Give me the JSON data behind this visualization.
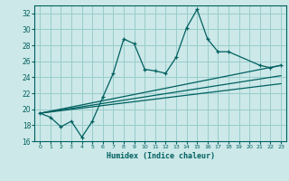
{
  "xlabel": "Humidex (Indice chaleur)",
  "background_color": "#cce8e8",
  "grid_color": "#99cccc",
  "line_color": "#006060",
  "xlim": [
    -0.5,
    23.5
  ],
  "ylim": [
    16,
    33
  ],
  "yticks": [
    16,
    18,
    20,
    22,
    24,
    26,
    28,
    30,
    32
  ],
  "xticks": [
    0,
    1,
    2,
    3,
    4,
    5,
    6,
    7,
    8,
    9,
    10,
    11,
    12,
    13,
    14,
    15,
    16,
    17,
    18,
    19,
    20,
    21,
    22,
    23
  ],
  "zigzag_x": [
    0,
    1,
    2,
    3,
    4,
    5,
    6,
    7,
    8,
    9,
    10,
    11,
    12,
    13,
    14,
    15,
    16,
    17,
    18,
    21,
    22,
    23
  ],
  "zigzag_y": [
    19.5,
    19.0,
    17.8,
    18.5,
    16.5,
    18.5,
    21.5,
    24.5,
    28.8,
    28.2,
    25.0,
    24.8,
    24.5,
    26.5,
    30.2,
    32.5,
    28.8,
    27.2,
    27.2,
    25.5,
    25.2,
    25.5
  ],
  "line2_x": [
    0,
    23
  ],
  "line2_y": [
    19.5,
    25.5
  ],
  "line3_x": [
    0,
    23
  ],
  "line3_y": [
    19.5,
    24.2
  ],
  "line4_x": [
    0,
    23
  ],
  "line4_y": [
    19.5,
    23.2
  ]
}
